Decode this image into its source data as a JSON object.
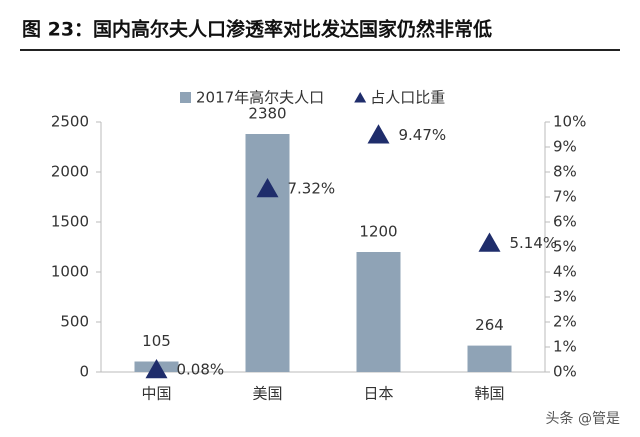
{
  "chart_data": {
    "type": "combo",
    "title": "图 23：国内高尔夫人口渗透率对比发达国家仍然非常低",
    "categories": [
      "中国",
      "美国",
      "日本",
      "韩国"
    ],
    "series": [
      {
        "name": "2017年高尔夫人口",
        "type": "bar",
        "color": "#8fa3b6",
        "values": [
          105,
          2380,
          1200,
          264
        ]
      },
      {
        "name": "占人口比重",
        "type": "triangle",
        "axis": "y2",
        "color": "#1f2d6b",
        "values": [
          0.08,
          7.32,
          9.47,
          5.14
        ],
        "value_labels": [
          "0.08%",
          "7.32%",
          "9.47%",
          "5.14%"
        ]
      }
    ],
    "ylim": [
      0,
      2500
    ],
    "yticks": [
      0,
      500,
      1000,
      1500,
      2000,
      2500
    ],
    "y2lim": [
      0,
      10
    ],
    "y2ticks": [
      {
        "value": 0,
        "label": "0%"
      },
      {
        "value": 1,
        "label": "1%"
      },
      {
        "value": 2,
        "label": "2%"
      },
      {
        "value": 3,
        "label": "3%"
      },
      {
        "value": 4,
        "label": "4%"
      },
      {
        "value": 5,
        "label": "5%"
      },
      {
        "value": 6,
        "label": "6%"
      },
      {
        "value": 7,
        "label": "7%"
      },
      {
        "value": 8,
        "label": "8%"
      },
      {
        "value": 9,
        "label": "9%"
      },
      {
        "value": 10,
        "label": "10%"
      }
    ],
    "legend": "top",
    "grid": false,
    "watermark": "头条 @管是"
  }
}
